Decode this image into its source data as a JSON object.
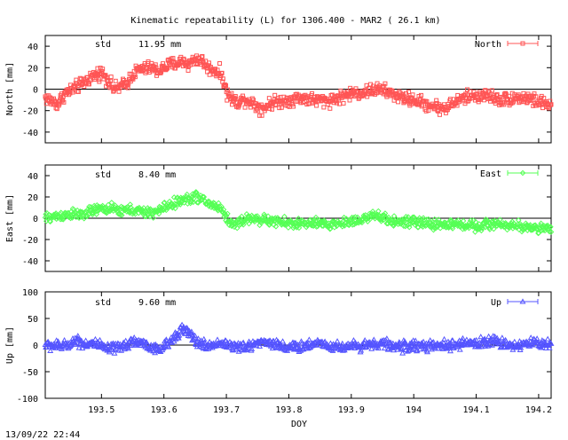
{
  "title": "Kinematic repeatability (L) for 1306.400 - MAR2  ( 26.1 km)",
  "footer_timestamp": "13/09/22 22:44",
  "colors": {
    "north": "#ff5555",
    "east": "#55ff55",
    "up": "#5555ff",
    "axis": "#000000"
  },
  "chart_data": [
    {
      "type": "scatter",
      "id": "north",
      "series": [
        {
          "name": "North",
          "marker": "square",
          "color": "#ff5555"
        }
      ],
      "ylabel": "North [mm]",
      "std_label": "std",
      "std_value": "11.95 mm",
      "xlim": [
        193.41,
        194.22
      ],
      "ylim": [
        -50,
        50
      ],
      "yticks": [
        "40",
        "20",
        "0",
        "-20",
        "-40"
      ],
      "yticks_values": [
        40,
        20,
        0,
        -20,
        -40
      ],
      "trend": [
        [
          193.41,
          -8
        ],
        [
          193.43,
          -14
        ],
        [
          193.44,
          -5
        ],
        [
          193.46,
          2
        ],
        [
          193.47,
          5
        ],
        [
          193.48,
          10
        ],
        [
          193.49,
          13
        ],
        [
          193.5,
          16
        ],
        [
          193.51,
          9
        ],
        [
          193.52,
          0
        ],
        [
          193.53,
          2
        ],
        [
          193.54,
          5
        ],
        [
          193.55,
          14
        ],
        [
          193.56,
          18
        ],
        [
          193.57,
          19
        ],
        [
          193.58,
          20
        ],
        [
          193.59,
          17
        ],
        [
          193.6,
          20
        ],
        [
          193.61,
          23
        ],
        [
          193.62,
          24
        ],
        [
          193.63,
          26
        ],
        [
          193.64,
          23
        ],
        [
          193.65,
          28
        ],
        [
          193.66,
          27
        ],
        [
          193.67,
          20
        ],
        [
          193.68,
          18
        ],
        [
          193.69,
          15
        ],
        [
          193.695,
          10
        ],
        [
          193.7,
          -3
        ],
        [
          193.71,
          -10
        ],
        [
          193.72,
          -12
        ],
        [
          193.73,
          -9
        ],
        [
          193.74,
          -12
        ],
        [
          193.75,
          -16
        ],
        [
          193.76,
          -18
        ],
        [
          193.77,
          -13
        ],
        [
          193.78,
          -12
        ],
        [
          193.8,
          -10
        ],
        [
          193.82,
          -8
        ],
        [
          193.84,
          -10
        ],
        [
          193.86,
          -11
        ],
        [
          193.88,
          -8
        ],
        [
          193.9,
          -4
        ],
        [
          193.92,
          -3
        ],
        [
          193.94,
          0
        ],
        [
          193.95,
          -1
        ],
        [
          193.96,
          -3
        ],
        [
          193.98,
          -8
        ],
        [
          194.0,
          -10
        ],
        [
          194.02,
          -14
        ],
        [
          194.04,
          -17
        ],
        [
          194.05,
          -18
        ],
        [
          194.06,
          -14
        ],
        [
          194.08,
          -8
        ],
        [
          194.1,
          -6
        ],
        [
          194.12,
          -6
        ],
        [
          194.14,
          -10
        ],
        [
          194.16,
          -8
        ],
        [
          194.18,
          -8
        ],
        [
          194.2,
          -12
        ],
        [
          194.22,
          -15
        ]
      ],
      "noise_amplitude": 5
    },
    {
      "type": "scatter",
      "id": "east",
      "series": [
        {
          "name": "East",
          "marker": "diamond",
          "color": "#55ff55"
        }
      ],
      "ylabel": "East [mm]",
      "std_label": "std",
      "std_value": "8.40 mm",
      "xlim": [
        193.41,
        194.22
      ],
      "ylim": [
        -50,
        50
      ],
      "yticks": [
        "40",
        "20",
        "0",
        "-20",
        "-40"
      ],
      "yticks_values": [
        40,
        20,
        0,
        -20,
        -40
      ],
      "trend": [
        [
          193.41,
          0
        ],
        [
          193.43,
          2
        ],
        [
          193.45,
          4
        ],
        [
          193.47,
          3
        ],
        [
          193.49,
          8
        ],
        [
          193.51,
          9
        ],
        [
          193.53,
          7
        ],
        [
          193.55,
          8
        ],
        [
          193.57,
          5
        ],
        [
          193.59,
          6
        ],
        [
          193.6,
          10
        ],
        [
          193.62,
          15
        ],
        [
          193.64,
          18
        ],
        [
          193.65,
          21
        ],
        [
          193.66,
          18
        ],
        [
          193.67,
          14
        ],
        [
          193.68,
          12
        ],
        [
          193.69,
          10
        ],
        [
          193.7,
          1
        ],
        [
          193.71,
          -7
        ],
        [
          193.72,
          -3
        ],
        [
          193.74,
          0
        ],
        [
          193.76,
          -2
        ],
        [
          193.78,
          -3
        ],
        [
          193.8,
          -5
        ],
        [
          193.82,
          -5
        ],
        [
          193.84,
          -5
        ],
        [
          193.86,
          -6
        ],
        [
          193.88,
          -5
        ],
        [
          193.9,
          -3
        ],
        [
          193.92,
          0
        ],
        [
          193.94,
          2
        ],
        [
          193.95,
          0
        ],
        [
          193.97,
          -3
        ],
        [
          194.0,
          -4
        ],
        [
          194.02,
          -5
        ],
        [
          194.04,
          -6
        ],
        [
          194.06,
          -6
        ],
        [
          194.08,
          -6
        ],
        [
          194.1,
          -7
        ],
        [
          194.12,
          -6
        ],
        [
          194.14,
          -5
        ],
        [
          194.16,
          -8
        ],
        [
          194.18,
          -8
        ],
        [
          194.2,
          -9
        ],
        [
          194.22,
          -11
        ]
      ],
      "noise_amplitude": 4
    },
    {
      "type": "scatter",
      "id": "up",
      "series": [
        {
          "name": "Up",
          "marker": "triangle",
          "color": "#5555ff"
        }
      ],
      "ylabel": "Up [mm]",
      "std_label": "std",
      "std_value": "9.60 mm",
      "xlim": [
        193.41,
        194.22
      ],
      "ylim": [
        -100,
        100
      ],
      "yticks": [
        "100",
        "50",
        "0",
        "-50",
        "-100"
      ],
      "yticks_values": [
        100,
        50,
        0,
        -50,
        -100
      ],
      "xticks": [
        "193.5",
        "193.6",
        "193.7",
        "193.8",
        "193.9",
        "194",
        "194.1",
        "194.2"
      ],
      "xticks_values": [
        193.5,
        193.6,
        193.7,
        193.8,
        193.9,
        194.0,
        194.1,
        194.2
      ],
      "xlabel": "DOY",
      "trend": [
        [
          193.41,
          0
        ],
        [
          193.44,
          -2
        ],
        [
          193.46,
          10
        ],
        [
          193.47,
          3
        ],
        [
          193.49,
          2
        ],
        [
          193.51,
          -8
        ],
        [
          193.53,
          -5
        ],
        [
          193.55,
          8
        ],
        [
          193.57,
          2
        ],
        [
          193.59,
          -10
        ],
        [
          193.61,
          5
        ],
        [
          193.62,
          22
        ],
        [
          193.63,
          30
        ],
        [
          193.64,
          22
        ],
        [
          193.65,
          8
        ],
        [
          193.67,
          -3
        ],
        [
          193.69,
          5
        ],
        [
          193.71,
          -2
        ],
        [
          193.73,
          -6
        ],
        [
          193.75,
          6
        ],
        [
          193.77,
          5
        ],
        [
          193.79,
          -2
        ],
        [
          193.81,
          -5
        ],
        [
          193.83,
          0
        ],
        [
          193.85,
          5
        ],
        [
          193.87,
          -3
        ],
        [
          193.89,
          -3
        ],
        [
          193.91,
          -1
        ],
        [
          193.93,
          2
        ],
        [
          193.95,
          3
        ],
        [
          193.97,
          -3
        ],
        [
          193.99,
          -2
        ],
        [
          194.01,
          -1
        ],
        [
          194.03,
          -3
        ],
        [
          194.05,
          -1
        ],
        [
          194.07,
          0
        ],
        [
          194.09,
          4
        ],
        [
          194.11,
          4
        ],
        [
          194.13,
          8
        ],
        [
          194.15,
          1
        ],
        [
          194.17,
          0
        ],
        [
          194.19,
          4
        ],
        [
          194.22,
          2
        ]
      ],
      "noise_amplitude": 8
    }
  ]
}
